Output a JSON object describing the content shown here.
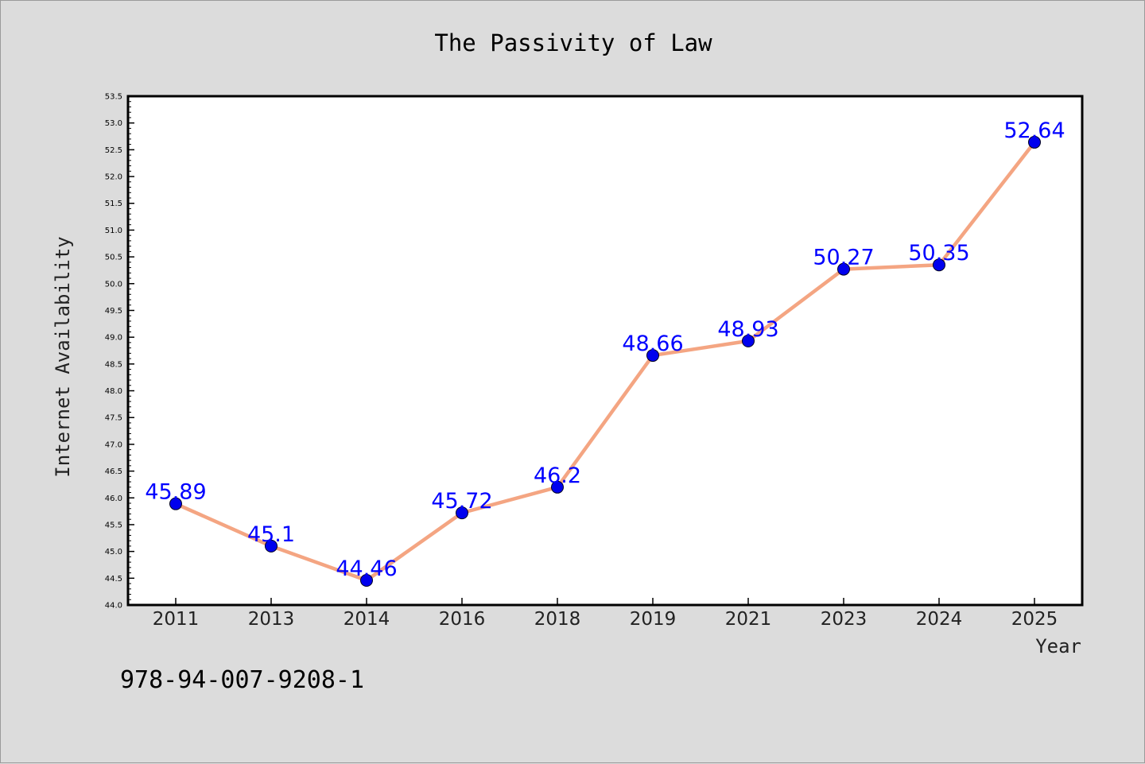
{
  "chart_data": {
    "type": "line",
    "title": "The Passivity of Law",
    "xlabel": "Year",
    "ylabel": "Internet Availability",
    "categories": [
      "2011",
      "2013",
      "2014",
      "2016",
      "2018",
      "2019",
      "2021",
      "2023",
      "2024",
      "2025"
    ],
    "series": [
      {
        "values": [
          45.89,
          45.1,
          44.46,
          45.72,
          46.2,
          48.66,
          48.93,
          50.27,
          50.35,
          52.64
        ],
        "labels": [
          "45.89",
          "45.1",
          "44.46",
          "45.72",
          "46.2",
          "48.66",
          "48.93",
          "50.27",
          "50.35",
          "52.64"
        ]
      }
    ],
    "ylim": [
      44.0,
      53.5
    ],
    "yticks": [
      "44.0",
      "44.5",
      "45.0",
      "45.5",
      "46.0",
      "46.5",
      "47.0",
      "47.5",
      "48.0",
      "48.5",
      "49.0",
      "49.5",
      "50.0",
      "50.5",
      "51.0",
      "51.5",
      "52.0",
      "52.5",
      "53.0",
      "53.5"
    ],
    "grid": false,
    "colors": {
      "line": "#f4a582",
      "marker": "#0000ee",
      "data_label": "#0000ff",
      "background": "#dcdcdc",
      "plot_background": "#ffffff"
    }
  },
  "annotation": "978-94-007-9208-1"
}
